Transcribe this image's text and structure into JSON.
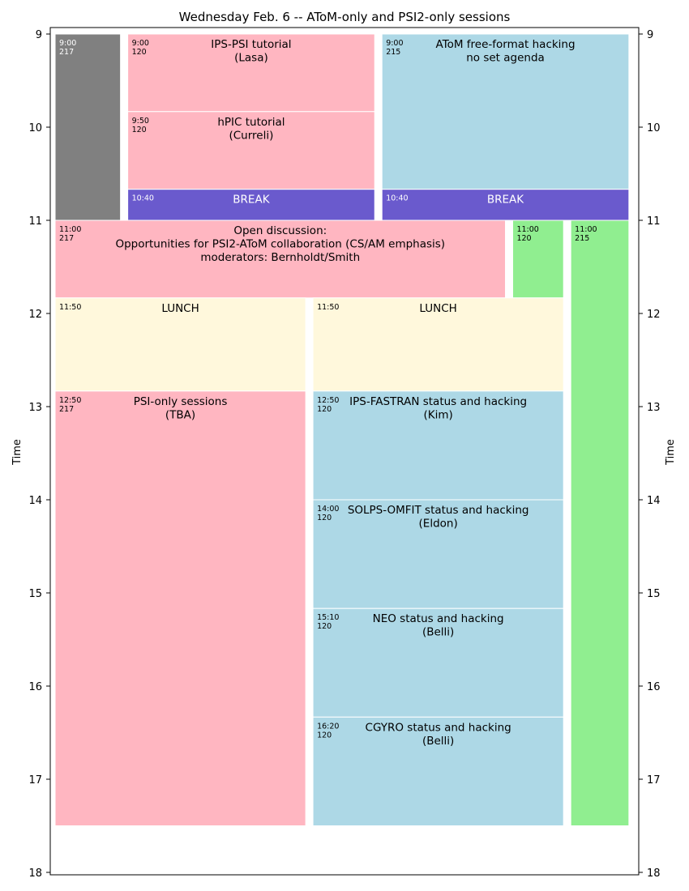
{
  "chart_data": {
    "type": "schedule",
    "title": "Wednesday Feb. 6 -- AToM-only and PSI2-only sessions",
    "ylabel": "Time",
    "ylim": [
      9,
      18
    ],
    "yticks": [
      "9",
      "10",
      "11",
      "12",
      "13",
      "14",
      "15",
      "16",
      "17",
      "18"
    ],
    "colors": {
      "pink": "#ffb6c1",
      "blue": "#add8e6",
      "purple": "#6a5acd",
      "green": "#90ee90",
      "cream": "#fff8dc",
      "gray": "#808080"
    },
    "events": [
      {
        "start": 9.0,
        "end": 11.0,
        "col_start": 0,
        "col_end": 0.9,
        "color": "#808080",
        "time": "9:00",
        "room": "217",
        "lines": [],
        "light": true
      },
      {
        "start": 9.0,
        "end": 9.833,
        "col_start": 1,
        "col_end": 4.4,
        "color": "#ffb6c1",
        "time": "9:00",
        "room": "120",
        "lines": [
          "IPS-PSI tutorial",
          "(Lasa)"
        ]
      },
      {
        "start": 9.833,
        "end": 10.667,
        "col_start": 1,
        "col_end": 4.4,
        "color": "#ffb6c1",
        "time": "9:50",
        "room": "120",
        "lines": [
          "hPIC tutorial",
          "(Curreli)"
        ]
      },
      {
        "start": 10.667,
        "end": 11.0,
        "col_start": 1,
        "col_end": 4.4,
        "color": "#6a5acd",
        "time": "10:40",
        "room": "",
        "lines": [
          "BREAK"
        ],
        "light": true
      },
      {
        "start": 9.0,
        "end": 10.667,
        "col_start": 4.5,
        "col_end": 7.9,
        "color": "#add8e6",
        "time": "9:00",
        "room": "215",
        "lines": [
          "AToM free-format hacking",
          "no set agenda"
        ]
      },
      {
        "start": 10.667,
        "end": 11.0,
        "col_start": 4.5,
        "col_end": 7.9,
        "color": "#6a5acd",
        "time": "10:40",
        "room": "",
        "lines": [
          "BREAK"
        ],
        "light": true
      },
      {
        "start": 11.0,
        "end": 11.833,
        "col_start": 0,
        "col_end": 6.2,
        "color": "#ffb6c1",
        "time": "11:00",
        "room": "217",
        "lines": [
          "Open discussion:",
          "Opportunities for PSI2-AToM collaboration (CS/AM emphasis)",
          "moderators: Bernholdt/Smith"
        ]
      },
      {
        "start": 11.0,
        "end": 11.833,
        "col_start": 6.3,
        "col_end": 7.0,
        "color": "#90ee90",
        "time": "11:00",
        "room": "120",
        "lines": []
      },
      {
        "start": 11.0,
        "end": 17.5,
        "col_start": 7.1,
        "col_end": 7.9,
        "color": "#90ee90",
        "time": "11:00",
        "room": "215",
        "lines": []
      },
      {
        "start": 11.833,
        "end": 12.833,
        "col_start": 0,
        "col_end": 3.45,
        "color": "#fff8dc",
        "time": "11:50",
        "room": "",
        "lines": [
          "LUNCH"
        ]
      },
      {
        "start": 11.833,
        "end": 12.833,
        "col_start": 3.55,
        "col_end": 7.0,
        "color": "#fff8dc",
        "time": "11:50",
        "room": "",
        "lines": [
          "LUNCH"
        ]
      },
      {
        "start": 12.833,
        "end": 17.5,
        "col_start": 0,
        "col_end": 3.45,
        "color": "#ffb6c1",
        "time": "12:50",
        "room": "217",
        "lines": [
          "PSI-only sessions",
          "(TBA)"
        ]
      },
      {
        "start": 12.833,
        "end": 14.0,
        "col_start": 3.55,
        "col_end": 7.0,
        "color": "#add8e6",
        "time": "12:50",
        "room": "120",
        "lines": [
          "IPS-FASTRAN status and hacking",
          "(Kim)"
        ]
      },
      {
        "start": 14.0,
        "end": 15.167,
        "col_start": 3.55,
        "col_end": 7.0,
        "color": "#add8e6",
        "time": "14:00",
        "room": "120",
        "lines": [
          "SOLPS-OMFIT status and hacking",
          "(Eldon)"
        ]
      },
      {
        "start": 15.167,
        "end": 16.333,
        "col_start": 3.55,
        "col_end": 7.0,
        "color": "#add8e6",
        "time": "15:10",
        "room": "120",
        "lines": [
          "NEO status and hacking",
          "(Belli)"
        ]
      },
      {
        "start": 16.333,
        "end": 17.5,
        "col_start": 3.55,
        "col_end": 7.0,
        "color": "#add8e6",
        "time": "16:20",
        "room": "120",
        "lines": [
          "CGYRO status and hacking",
          "(Belli)"
        ]
      }
    ]
  }
}
